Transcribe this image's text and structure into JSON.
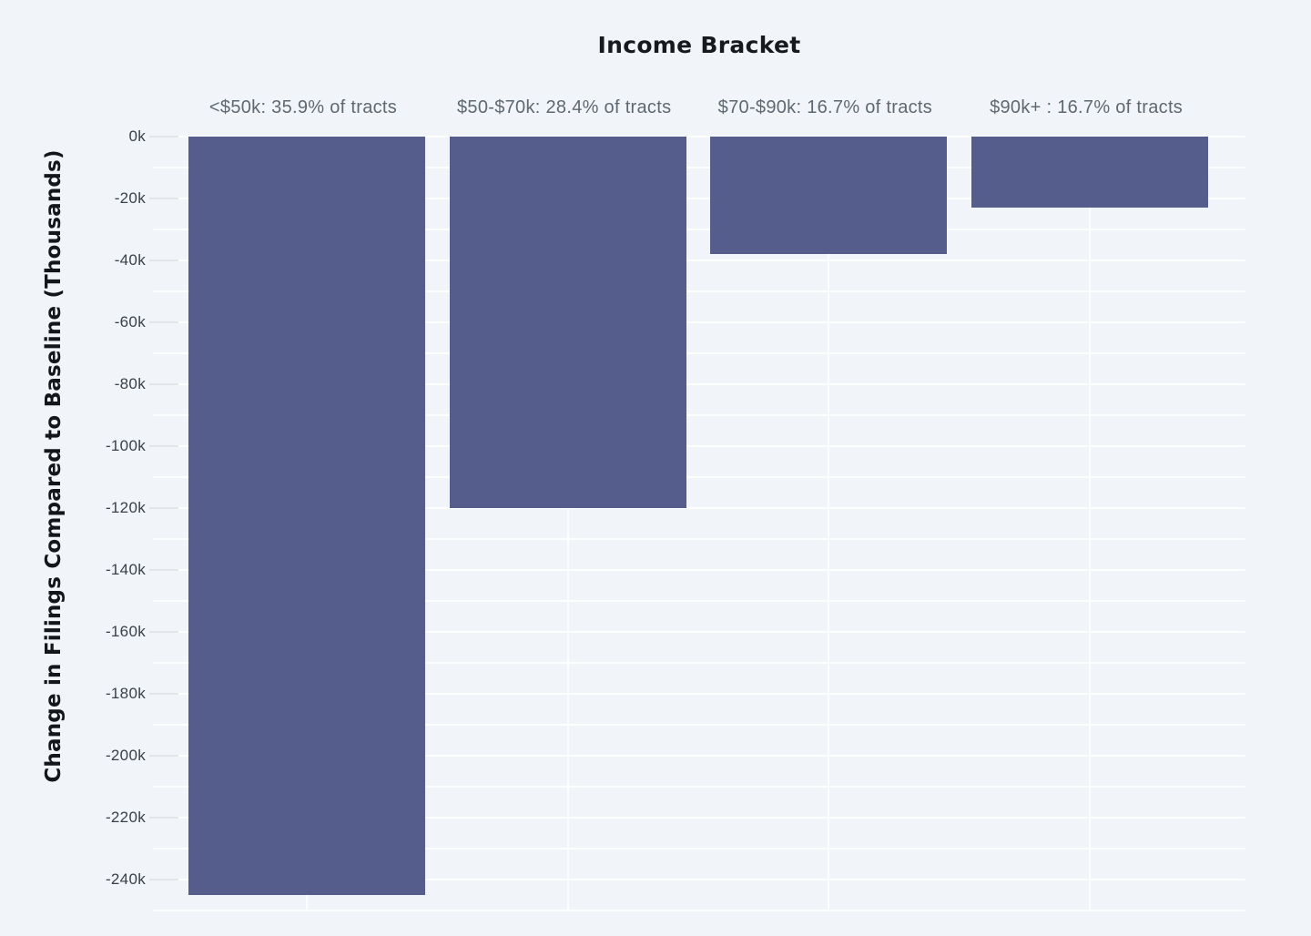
{
  "chart_data": {
    "type": "bar",
    "orientation": "vertical",
    "title": "Income Bracket",
    "xlabel": "Income Bracket",
    "xlabel_position": "top",
    "ylabel": "Change in Filings Compared to Baseline (Thousands)",
    "categories": [
      "<$50k: 35.9% of tracts",
      "$50-$70k: 28.4% of tracts",
      "$70-$90k: 16.7% of tracts",
      "$90k+ : 16.7% of tracts"
    ],
    "values": [
      -245,
      -120,
      -38,
      -23
    ],
    "values_unit": "thousands of filings (k)",
    "series_name": "Change in Filings Compared to Baseline",
    "ylim": [
      -250,
      0
    ],
    "y_ticks": [
      {
        "value": 0,
        "label": "0k"
      },
      {
        "value": -20,
        "label": "-20k"
      },
      {
        "value": -40,
        "label": "-40k"
      },
      {
        "value": -60,
        "label": "-60k"
      },
      {
        "value": -80,
        "label": "-80k"
      },
      {
        "value": -100,
        "label": "-100k"
      },
      {
        "value": -120,
        "label": "-120k"
      },
      {
        "value": -140,
        "label": "-140k"
      },
      {
        "value": -160,
        "label": "-160k"
      },
      {
        "value": -180,
        "label": "-180k"
      },
      {
        "value": -200,
        "label": "-200k"
      },
      {
        "value": -220,
        "label": "-220k"
      },
      {
        "value": -240,
        "label": "-240k"
      }
    ],
    "y_minor_grid_step": 10,
    "grid": true,
    "legend": false,
    "colors": {
      "background": "#f1f5f9",
      "bar": "#555d8c",
      "gridline": "#ffffff",
      "tick_mark": "#e2e5e9",
      "title_text": "#17191c",
      "axis_title_text": "#14171a",
      "tick_label_text": "#3a4046",
      "category_label_text": "#5e6870"
    }
  }
}
